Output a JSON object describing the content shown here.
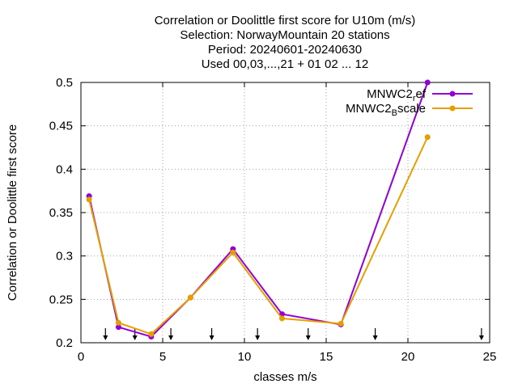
{
  "chart_data": {
    "type": "line",
    "title_lines": [
      "Correlation or Doolittle first score  for U10m (m/s)",
      "Selection: NorwayMountain     20 stations",
      "Period: 20240601-20240630",
      "Used 00,03,...,21 + 01 02 ... 12"
    ],
    "xlabel": "classes m/s",
    "ylabel": "Correlation or Doolittle first score",
    "xlim": [
      0,
      25
    ],
    "ylim": [
      0.2,
      0.5
    ],
    "xticks": [
      0,
      5,
      10,
      15,
      20,
      25
    ],
    "yticks": [
      0.2,
      0.25,
      0.3,
      0.35,
      0.4,
      0.45,
      0.5
    ],
    "ytick_labels": [
      "0.2",
      "0.25",
      "0.3",
      "0.35",
      "0.4",
      "0.45",
      "0.5"
    ],
    "grid": true,
    "legend_position": "top-right",
    "series": [
      {
        "name_main": "MNWC2",
        "name_sub": "r",
        "name_rest": "ef",
        "color": "#9400d3",
        "x": [
          0.5,
          2.3,
          4.3,
          6.7,
          9.3,
          12.3,
          15.9,
          21.2
        ],
        "y": [
          0.369,
          0.218,
          0.207,
          0.252,
          0.308,
          0.233,
          0.221,
          0.5
        ]
      },
      {
        "name_main": "MNWC2",
        "name_sub": "B",
        "name_rest": "scale",
        "color": "#e69f00",
        "x": [
          0.5,
          2.3,
          4.3,
          6.7,
          9.3,
          12.3,
          15.9,
          21.2
        ],
        "y": [
          0.365,
          0.223,
          0.21,
          0.252,
          0.304,
          0.228,
          0.222,
          0.437
        ]
      }
    ],
    "class_limit_arrows": [
      1.5,
      3.3,
      5.5,
      8,
      10.8,
      13.9,
      18,
      24.5
    ]
  }
}
